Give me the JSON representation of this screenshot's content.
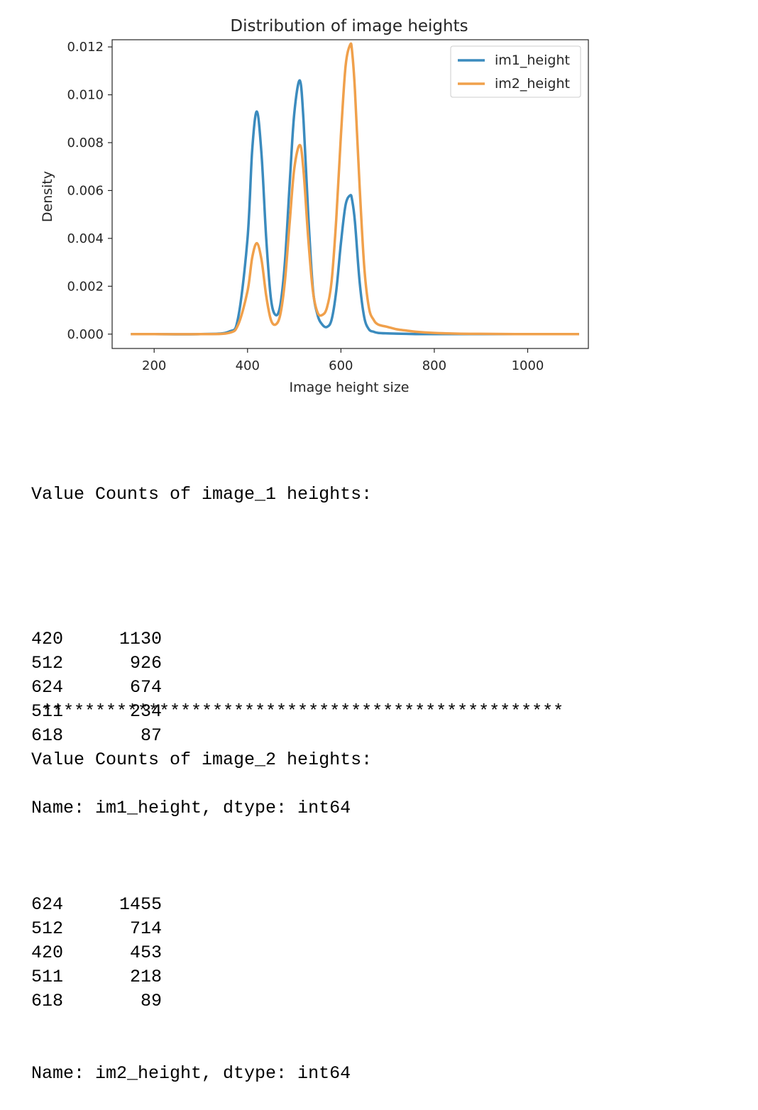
{
  "chart_data": {
    "type": "line",
    "title": "Distribution of image heights",
    "xlabel": "Image height size",
    "ylabel": "Density",
    "xlim": [
      110,
      1130
    ],
    "ylim": [
      -0.0006,
      0.0123
    ],
    "xticks": [
      200,
      400,
      600,
      800,
      1000
    ],
    "yticks": [
      0.0,
      0.002,
      0.004,
      0.006,
      0.008,
      0.01,
      0.012
    ],
    "ytick_labels": [
      "0.000",
      "0.002",
      "0.004",
      "0.006",
      "0.008",
      "0.010",
      "0.012"
    ],
    "grid": false,
    "legend_position": "top-right",
    "x": [
      150,
      200,
      300,
      360,
      380,
      400,
      410,
      420,
      430,
      440,
      450,
      460,
      470,
      480,
      490,
      500,
      512,
      520,
      530,
      540,
      550,
      560,
      570,
      580,
      590,
      600,
      610,
      620,
      624,
      630,
      640,
      650,
      660,
      670,
      680,
      700,
      720,
      740,
      760,
      800,
      850,
      900,
      1000,
      1110
    ],
    "series": [
      {
        "name": "im1_height",
        "color": "#3b8bbe",
        "values": [
          0,
          0,
          0,
          0.0001,
          0.0007,
          0.004,
          0.0077,
          0.0093,
          0.0075,
          0.004,
          0.0015,
          0.0008,
          0.0012,
          0.003,
          0.0062,
          0.0092,
          0.0106,
          0.0089,
          0.005,
          0.0019,
          0.0008,
          0.0004,
          0.0003,
          0.0006,
          0.0018,
          0.0038,
          0.0054,
          0.0058,
          0.0056,
          0.0047,
          0.0022,
          0.0007,
          0.0002,
          0.0001,
          5e-05,
          3e-05,
          2e-05,
          1e-05,
          0,
          0,
          0,
          0,
          0,
          0
        ]
      },
      {
        "name": "im2_height",
        "color": "#f0a04b",
        "values": [
          0,
          0,
          0,
          5e-05,
          0.0004,
          0.0018,
          0.0032,
          0.0038,
          0.0031,
          0.0016,
          0.0006,
          0.0004,
          0.0008,
          0.0022,
          0.0046,
          0.0069,
          0.0079,
          0.0068,
          0.004,
          0.0018,
          0.0009,
          0.0008,
          0.0011,
          0.0022,
          0.0048,
          0.0083,
          0.0112,
          0.0121,
          0.0118,
          0.0102,
          0.0062,
          0.0028,
          0.0011,
          0.0006,
          0.0004,
          0.0003,
          0.0002,
          0.00015,
          0.0001,
          5e-05,
          2e-05,
          1e-05,
          0,
          0
        ]
      }
    ]
  },
  "output": {
    "im1_header": "Value Counts of image_1 heights:",
    "im1_counts": [
      {
        "value": "420",
        "count": "1130"
      },
      {
        "value": "512",
        "count": "926"
      },
      {
        "value": "624",
        "count": "674"
      },
      {
        "value": "511",
        "count": "234"
      },
      {
        "value": "618",
        "count": "87"
      }
    ],
    "im1_footer": "Name: im1_height, dtype: int64",
    "separator": " *************************************************",
    "im2_header": "Value Counts of image_2 heights:",
    "im2_counts": [
      {
        "value": "624",
        "count": "1455"
      },
      {
        "value": "512",
        "count": "714"
      },
      {
        "value": "420",
        "count": "453"
      },
      {
        "value": "511",
        "count": "218"
      },
      {
        "value": "618",
        "count": "89"
      }
    ],
    "im2_footer": "Name: im2_height, dtype: int64"
  }
}
